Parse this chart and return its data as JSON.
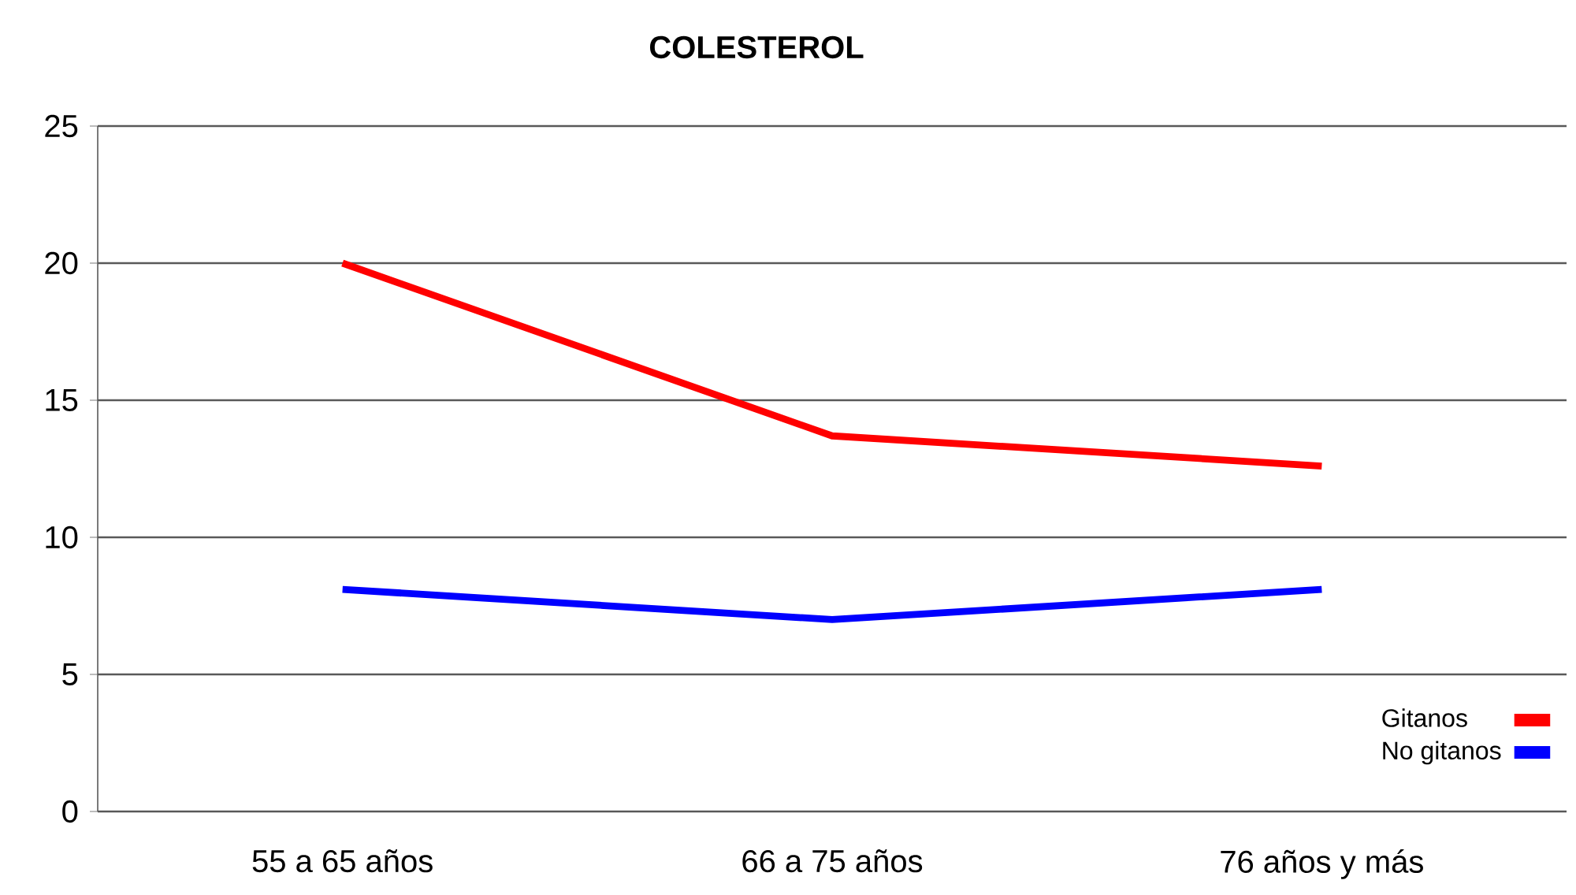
{
  "chart_data": {
    "type": "line",
    "title": "COLESTEROL",
    "categories": [
      "55 a 65 años",
      "66 a 75 años",
      "76 años y más"
    ],
    "series": [
      {
        "name": "Gitanos",
        "color": "#ff0000",
        "values": [
          20,
          13.7,
          12.6
        ]
      },
      {
        "name": "No gitanos",
        "color": "#0000ff",
        "values": [
          8.1,
          7.0,
          8.1
        ]
      }
    ],
    "ylim": [
      0,
      25
    ],
    "yticks": [
      0,
      5,
      10,
      15,
      20,
      25
    ],
    "grid": "y",
    "legend": "bottom right",
    "marker": "none"
  }
}
